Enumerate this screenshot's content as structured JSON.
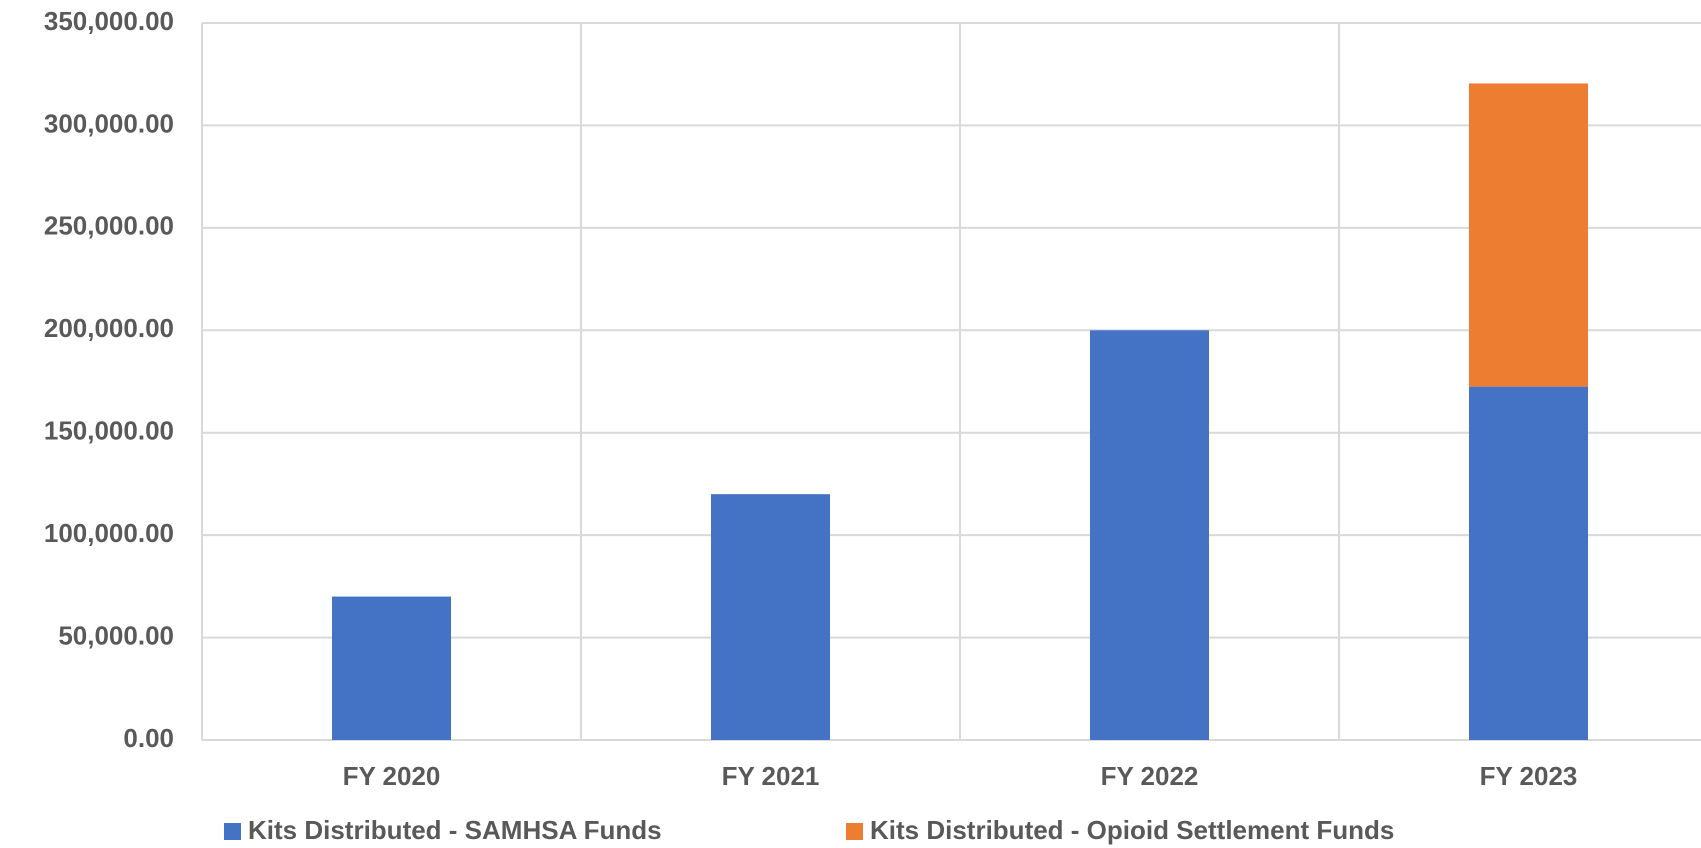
{
  "chart_data": {
    "type": "stacked_bar",
    "categories": [
      "FY 2020",
      "FY 2021",
      "FY 2022",
      "FY 2023"
    ],
    "series": [
      {
        "name": "Kits Distributed - SAMHSA Funds",
        "color": "#4472c4",
        "values": [
          70000,
          120000,
          200000,
          172500
        ]
      },
      {
        "name": "Kits Distributed - Opioid Settlement Funds",
        "color": "#ed7d31",
        "values": [
          0,
          0,
          0,
          148000
        ]
      }
    ],
    "ylim": [
      0,
      350000
    ],
    "yticks": [
      {
        "value": 0,
        "label": "0.00"
      },
      {
        "value": 50000,
        "label": "50,000.00"
      },
      {
        "value": 100000,
        "label": "100,000.00"
      },
      {
        "value": 150000,
        "label": "150,000.00"
      },
      {
        "value": 200000,
        "label": "200,000.00"
      },
      {
        "value": 250000,
        "label": "250,000.00"
      },
      {
        "value": 300000,
        "label": "300,000.00"
      },
      {
        "value": 350000,
        "label": "350,000.00"
      }
    ],
    "grid": true,
    "legend": "bottom"
  }
}
